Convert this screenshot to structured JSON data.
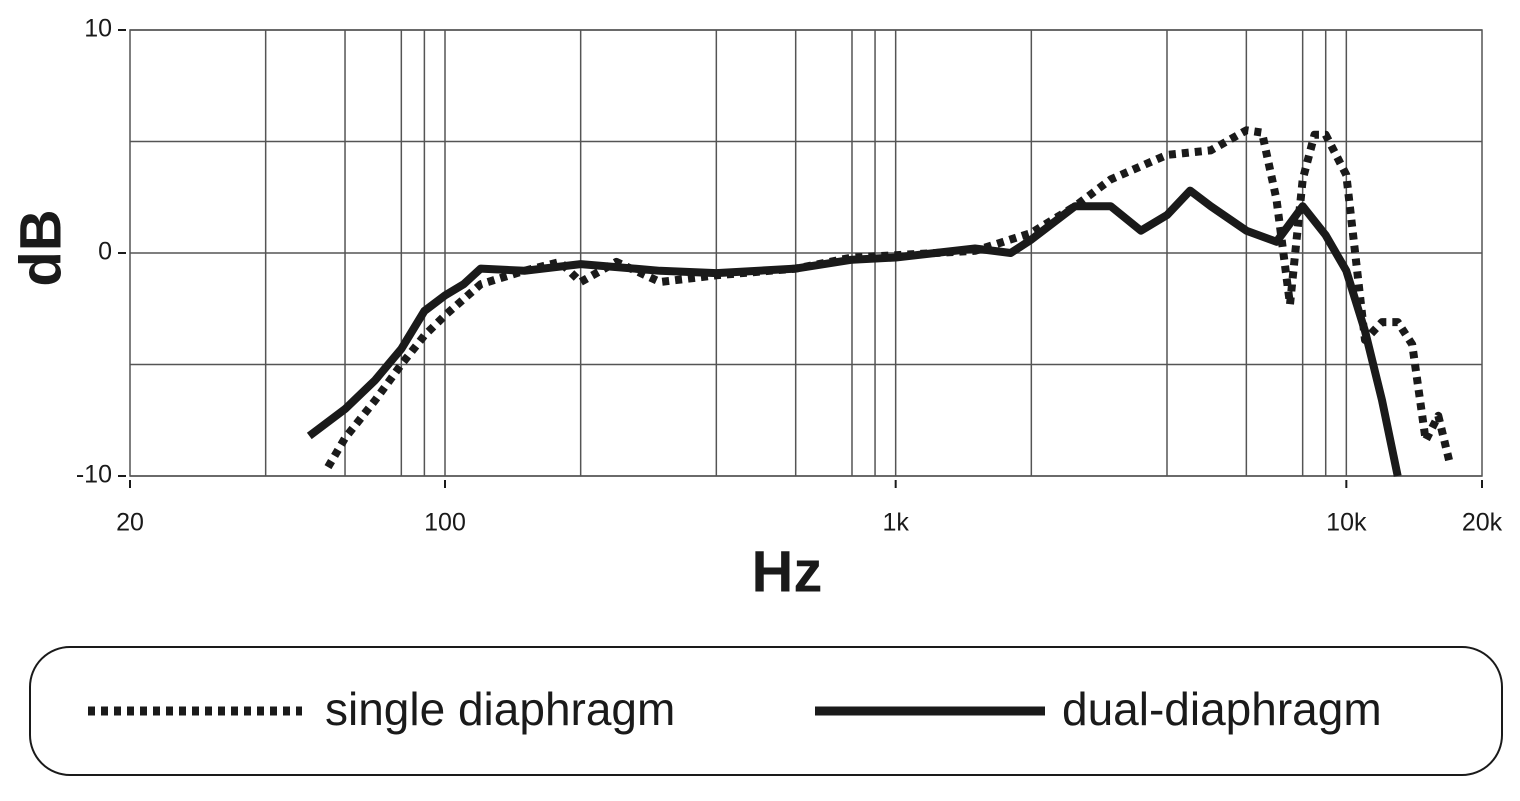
{
  "chart_data": {
    "type": "line",
    "xlabel": "Hz",
    "ylabel": "dB",
    "xscale": "log",
    "xlim": [
      20,
      20000
    ],
    "ylim": [
      -10,
      10
    ],
    "xticks": [
      20,
      100,
      {
        "value": 1000,
        "label": "1k"
      },
      {
        "value": 10000,
        "label": "10k"
      },
      {
        "value": 20000,
        "label": "20k"
      }
    ],
    "yticks": [
      -10,
      0,
      10
    ],
    "xgrid": [
      40,
      60,
      80,
      90,
      100,
      200,
      400,
      600,
      800,
      900,
      1000,
      2000,
      4000,
      6000,
      8000,
      9000,
      10000
    ],
    "ygrid": [
      -10,
      -5,
      0,
      5,
      10
    ],
    "grid": true,
    "legend": "bottom",
    "series": [
      {
        "name": "single diaphragm",
        "color": "#1a1a1a",
        "line_style": "dotted",
        "x": [
          55,
          60,
          70,
          80,
          90,
          100,
          120,
          150,
          180,
          200,
          240,
          300,
          400,
          600,
          800,
          1000,
          1500,
          2000,
          2500,
          3000,
          4000,
          5000,
          6000,
          6500,
          7000,
          7500,
          8000,
          8500,
          9000,
          10000,
          11000,
          12000,
          13000,
          14000,
          15000,
          16000,
          17000
        ],
        "values": [
          -9.6,
          -8.3,
          -6.6,
          -5.0,
          -3.7,
          -2.8,
          -1.4,
          -0.8,
          -0.4,
          -1.3,
          -0.4,
          -1.3,
          -1.0,
          -0.7,
          -0.2,
          -0.1,
          0.1,
          0.9,
          2.1,
          3.3,
          4.4,
          4.6,
          5.5,
          5.4,
          2.4,
          -2.3,
          3.3,
          5.3,
          5.3,
          3.5,
          -3.9,
          -3.1,
          -3.1,
          -4.1,
          -8.4,
          -7.3,
          -9.5
        ]
      },
      {
        "name": "dual-diaphragm",
        "color": "#1a1a1a",
        "line_style": "solid",
        "x": [
          50,
          60,
          70,
          80,
          90,
          100,
          110,
          120,
          150,
          200,
          300,
          400,
          600,
          800,
          1000,
          1500,
          1800,
          2000,
          2500,
          3000,
          3500,
          4000,
          4500,
          5000,
          6000,
          7000,
          8000,
          9000,
          10000,
          11000,
          12000,
          13000
        ],
        "values": [
          -8.2,
          -7.0,
          -5.7,
          -4.3,
          -2.6,
          -1.9,
          -1.4,
          -0.7,
          -0.8,
          -0.5,
          -0.8,
          -0.9,
          -0.7,
          -0.3,
          -0.2,
          0.2,
          0.0,
          0.6,
          2.1,
          2.1,
          1.0,
          1.7,
          2.8,
          2.1,
          1.0,
          0.5,
          2.1,
          0.8,
          -0.8,
          -3.5,
          -6.6,
          -10
        ]
      }
    ]
  }
}
